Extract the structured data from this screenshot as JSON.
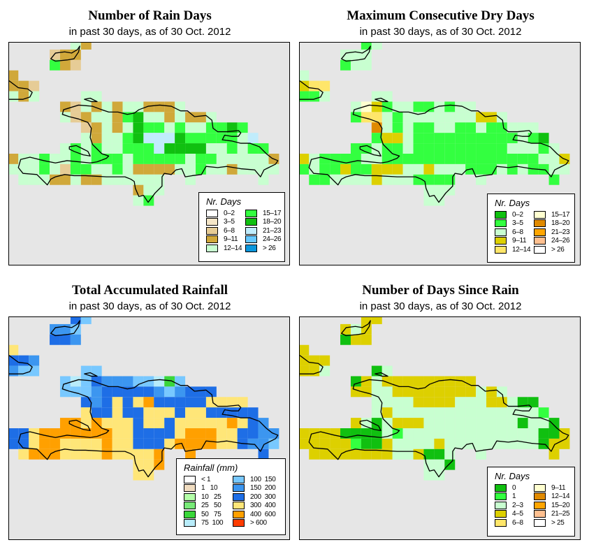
{
  "panels": [
    {
      "title": "Number of Rain Days",
      "subtitle": "in past 30 days, as of  30 Oct. 2012",
      "legend": {
        "title": "Nr. Days",
        "items": [
          {
            "label": "0–2",
            "color": "#ffffff"
          },
          {
            "label": "3–5",
            "color": "#f5e6c8"
          },
          {
            "label": "6–8",
            "color": "#e6cc96"
          },
          {
            "label": "9–11",
            "color": "#d0a83a"
          },
          {
            "label": "12–14",
            "color": "#c8ffd0"
          },
          {
            "label": "15–17",
            "color": "#33ff40"
          },
          {
            "label": "18–20",
            "color": "#10c010"
          },
          {
            "label": "21–23",
            "color": "#c0ecfc"
          },
          {
            "label": "24–26",
            "color": "#66c8ff"
          },
          {
            "label": "> 26",
            "color": "#0a96dc"
          }
        ]
      },
      "grid": [
        "......ed",
        "....cdd",
        "....fdc",
        "d",
        "ddc",
        "ede....ee",
        ".....dcededeeddde",
        ".....ecdeedfgeededde",
        ".......cdedegffefeeffgf",
        ".......edeefghhhgfffffeh",
        ".....efefeefffhggggeefeff",
        "deefeefefffefffffeffeeeeed",
        "eeefecffeefeddddeefeedeeee",
        ".eeeddeddeeeeee..e......e",
        "............dee",
        "............ef"
      ]
    },
    {
      "title": "Maximum Consecutive Dry Days",
      "subtitle": "in past 30 days, as of  30 Oct. 2012",
      "legend": {
        "title": "Nr. Days",
        "items": [
          {
            "label": "0–2",
            "color": "#10c010"
          },
          {
            "label": "3–5",
            "color": "#33ff40"
          },
          {
            "label": "6–8",
            "color": "#c8ffd0"
          },
          {
            "label": "9–11",
            "color": "#ddd000"
          },
          {
            "label": "12–14",
            "color": "#ffe66a"
          },
          {
            "label": "15–17",
            "color": "#ffffd0"
          },
          {
            "label": "18–20",
            "color": "#e08a00"
          },
          {
            "label": "21–23",
            "color": "#ffa500"
          },
          {
            "label": "24–26",
            "color": "#ffc090"
          },
          {
            "label": "> 26",
            "color": "#ffffff"
          }
        ]
      },
      "grid": [
        "......bc",
        "....ccc",
        "....bcc",
        "c",
        "dee",
        "bbc....cc",
        ".....cfdbccbbcbcc",
        ".....beecbcccccccddc",
        ".......gcbcbbccbbcbbccc",
        ".......bddcbbbbbbbbbbcba",
        ".....bbcbbcbbbbbbbbbcccbc",
        "dcbbbbccbbbbbbbbbbbbbbbccd",
        "bcbbdbbdddccdcccbbbcbcbbcc",
        ".bbccccdcccbbbb..c......b",
        "............ccc",
        "............cc"
      ]
    },
    {
      "title": "Total Accumulated Rainfall",
      "subtitle": "in past 30 days, as of  30 Oct. 2012",
      "legend": {
        "title": "Rainfall (mm)",
        "items": [
          {
            "label": "< 1",
            "color": "#ffffff"
          },
          {
            "label": "1   10",
            "color": "#f0dcc0"
          },
          {
            "label": "10   25",
            "color": "#b4ffa8"
          },
          {
            "label": "25   50",
            "color": "#78ea78"
          },
          {
            "label": "50   75",
            "color": "#3ad63a"
          },
          {
            "label": "75  100",
            "color": "#b8ecfa"
          },
          {
            "label": "100  150",
            "color": "#78c8ff"
          },
          {
            "label": "150  200",
            "color": "#3c96f0"
          },
          {
            "label": "200  300",
            "color": "#1e6ee6"
          },
          {
            "label": "300  400",
            "color": "#ffe678"
          },
          {
            "label": "400  600",
            "color": "#ffa000"
          },
          {
            "label": "> 600",
            "color": "#ff3c00"
          }
        ]
      },
      "grid": [
        "......ig",
        "....hhg",
        "....iih",
        "j",
        "iih",
        "hgg....gg",
        ".....gfgihhhggfeg",
        ".....ggghiiiiihghiii",
        ".......ihijijkiiiiijjjj",
        ".......jiijiijjjijjiiiii",
        ".....kkjkjjjijjijjjjjkjih",
        "iijkkkkkkkjjiiiijkkkjjiihh",
        "iijkkjjjjkjjiiijkkkkjjihhg",
        ".jkkkjjjjkjjjjk..k......i",
        "............jjk",
        "............jj"
      ]
    },
    {
      "title": "Number of Days Since Rain",
      "subtitle": "in past 30 days, as of  30 Oct. 2012",
      "legend": {
        "title": "Nr. Days",
        "items": [
          {
            "label": "0",
            "color": "#10c010"
          },
          {
            "label": "1",
            "color": "#33ff40"
          },
          {
            "label": "2–3",
            "color": "#c8ffd0"
          },
          {
            "label": "4–5",
            "color": "#ddd000"
          },
          {
            "label": "6–8",
            "color": "#ffe66a"
          },
          {
            "label": "9–11",
            "color": "#ffffd0"
          },
          {
            "label": "12–14",
            "color": "#e08a00"
          },
          {
            "label": "15–20",
            "color": "#ffa500"
          },
          {
            "label": "21–25",
            "color": "#ffc090"
          },
          {
            "label": "> 25",
            "color": "#ffffff"
          }
        ]
      },
      "grid": [
        "......dd",
        "....dcd",
        "....add",
        "d",
        "ddd",
        "ddc....ac",
        ".....adcddddddddd",
        ".....ddccddddddddcdc",
        ".......ccccddddcccddcaa",
        ".......cdccccccccccccccb",
        ".....dcacdddcccccccccacca",
        "ddddaaaacbcccccccccccccaad",
        "dddddbaadccccdcccccccccadd",
        ".ddddddddccdaac..c......d",
        "............cca",
        "............cc"
      ]
    }
  ]
}
